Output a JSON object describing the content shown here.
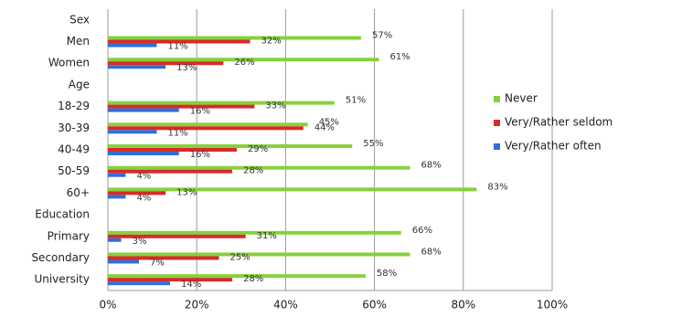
{
  "chart_data": {
    "type": "bar",
    "orientation": "horizontal",
    "categories": [
      "Sex",
      "Men",
      "Women",
      "Age",
      "18-29",
      "30-39",
      "40-49",
      "50-59",
      "60+",
      "Education",
      "Primary",
      "Secondary",
      "University"
    ],
    "series": [
      {
        "name": "Never",
        "color": "#86d13c",
        "values": [
          null,
          57,
          61,
          null,
          51,
          45,
          55,
          68,
          83,
          null,
          66,
          68,
          58
        ],
        "value_labels": [
          null,
          "57%",
          "61%",
          null,
          "51%",
          "45%",
          "55%",
          "68%",
          "83%",
          null,
          "66%",
          "68%",
          "58%"
        ]
      },
      {
        "name": "Very/Rather seldom",
        "color": "#d92a2a",
        "values": [
          null,
          32,
          26,
          null,
          33,
          44,
          29,
          28,
          13,
          null,
          31,
          25,
          28
        ],
        "value_labels": [
          null,
          "32%",
          "26%",
          null,
          "33%",
          "44%",
          "29%",
          "28%",
          "13%",
          null,
          "31%",
          "25%",
          "28%"
        ]
      },
      {
        "name": "Very/Rather often",
        "color": "#2f6fd8",
        "values": [
          null,
          11,
          13,
          null,
          16,
          11,
          16,
          4,
          4,
          null,
          3,
          7,
          14
        ],
        "value_labels": [
          null,
          "11%",
          "13%",
          null,
          "16%",
          "11%",
          "16%",
          "4%",
          "4%",
          null,
          "3%",
          "7%",
          "14%"
        ]
      }
    ],
    "xlim": [
      0,
      100
    ],
    "xticks": [
      {
        "value": 0,
        "label": "0%"
      },
      {
        "value": 20,
        "label": "20%"
      },
      {
        "value": 40,
        "label": "40%"
      },
      {
        "value": 60,
        "label": "60%"
      },
      {
        "value": 80,
        "label": "80%"
      },
      {
        "value": 100,
        "label": "100%"
      }
    ],
    "grid": true,
    "legend": "right"
  }
}
